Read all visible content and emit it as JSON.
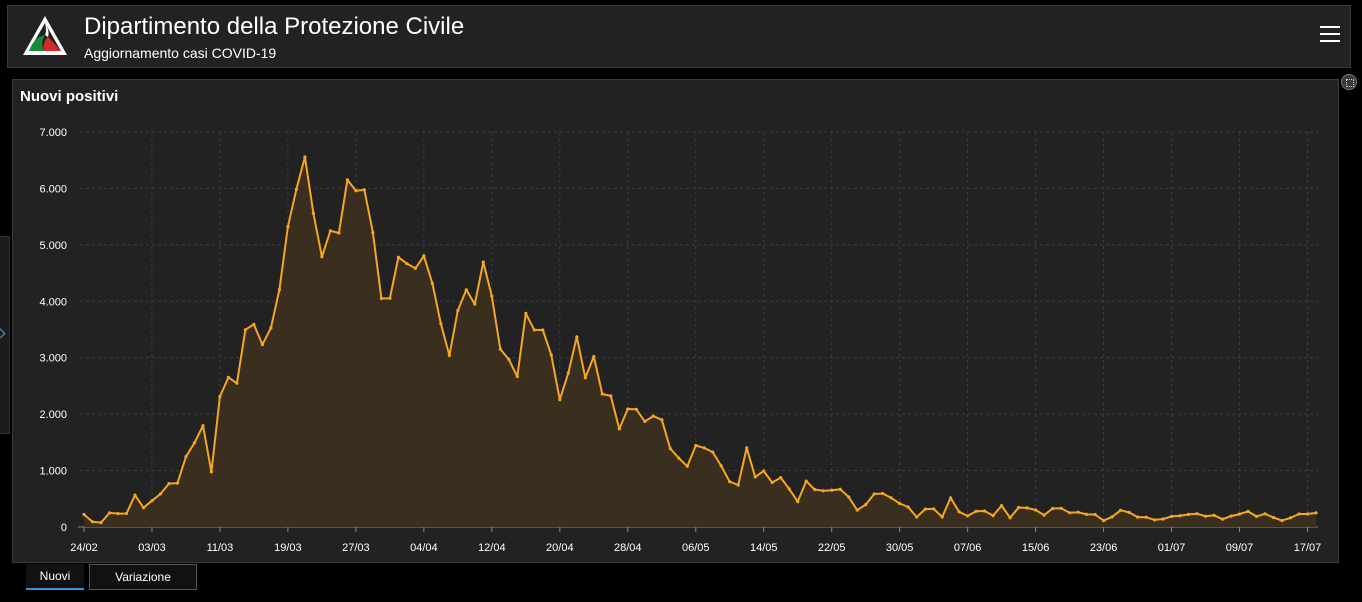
{
  "header": {
    "title": "Dipartimento della Protezione Civile",
    "subtitle": "Aggiornamento casi COVID-19",
    "menu_icon": "hamburger-menu-icon",
    "logo_icon": "protezione-civile-logo-icon"
  },
  "panel": {
    "title": "Nuovi positivi",
    "expand_icon": "expand-icon"
  },
  "tabs": [
    {
      "label": "Nuovi",
      "active": true
    },
    {
      "label": "Variazione",
      "active": false
    }
  ],
  "colors": {
    "line": "#f5a623",
    "area": "#3a2f1e",
    "grid": "#3c3c3c",
    "axis_text": "#ffffff",
    "accent": "#3a8fd8"
  },
  "chart_data": {
    "type": "area",
    "title": "Nuovi positivi",
    "xlabel": "",
    "ylabel": "",
    "ylim": [
      0,
      7000
    ],
    "yticks": [
      "0",
      "1.000",
      "2.000",
      "3.000",
      "4.000",
      "5.000",
      "6.000",
      "7.000"
    ],
    "xticks": [
      "24/02",
      "03/03",
      "11/03",
      "19/03",
      "27/03",
      "04/04",
      "12/04",
      "20/04",
      "28/04",
      "06/05",
      "14/05",
      "22/05",
      "30/05",
      "07/06",
      "15/06",
      "23/06",
      "01/07",
      "09/07",
      "17/07"
    ],
    "grid": true,
    "series": [
      {
        "start": "24/02",
        "values": [
          221,
          93,
          78,
          250,
          238,
          240,
          566,
          342,
          466,
          587,
          769,
          778,
          1247,
          1492,
          1797,
          977,
          2313,
          2651,
          2547,
          3497,
          3590,
          3233,
          3526,
          4207,
          5322,
          5986,
          6557,
          5560,
          4789,
          5249,
          5210,
          6153,
          5959,
          5974,
          5217,
          4050,
          4053,
          4782,
          4668,
          4585,
          4805,
          4316,
          3599,
          3039,
          3836,
          4204,
          3951,
          4694,
          4092,
          3153,
          2972,
          2667,
          3786,
          3493,
          3491,
          3047,
          2256,
          2729,
          3370,
          2646,
          3021,
          2357,
          2324,
          1739,
          2091,
          2086,
          1872,
          1965,
          1900,
          1389,
          1221,
          1075,
          1444,
          1401,
          1327,
          1083,
          802,
          744,
          1402,
          888,
          992,
          789,
          875,
          675,
          451,
          813,
          665,
          642,
          652,
          669,
          531,
          300,
          397,
          584,
          593,
          516,
          416,
          355,
          178,
          318,
          321,
          177,
          518,
          270,
          197,
          280,
          283,
          202,
          379,
          163,
          346,
          338,
          301,
          210,
          328,
          331,
          251,
          262,
          224,
          221,
          113,
          181,
          296,
          259,
          175,
          174,
          126,
          142,
          187,
          201,
          223,
          235,
          192,
          208,
          138,
          193,
          229,
          276,
          188,
          234,
          169,
          114,
          163,
          230,
          231,
          249
        ]
      }
    ]
  }
}
